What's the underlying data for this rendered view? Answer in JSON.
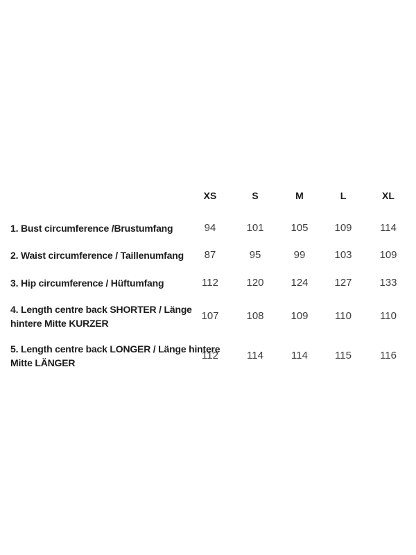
{
  "colors": {
    "background": "#ffffff",
    "text_primary": "#1c1c1c",
    "text_value": "#3c3c3c"
  },
  "chart_data": {
    "type": "table",
    "title": "",
    "grid": false,
    "size_headers": [
      "XS",
      "S",
      "M",
      "L",
      "XL"
    ],
    "measurements": [
      {
        "label": "1. Bust circumference /Brustumfang",
        "values": [
          94,
          101,
          105,
          109,
          114
        ]
      },
      {
        "label": "2. Waist circumference / Taillenumfang",
        "values": [
          87,
          95,
          99,
          103,
          109
        ]
      },
      {
        "label": "3. Hip circumference / Hüftumfang",
        "values": [
          112,
          120,
          124,
          127,
          133
        ]
      },
      {
        "label": "4. Length centre back SHORTER / Länge hintere Mitte KURZER",
        "values": [
          107,
          108,
          109,
          110,
          110
        ]
      },
      {
        "label": "5. Length centre back LONGER / Länge hintere Mitte LÄNGER",
        "values": [
          112,
          114,
          114,
          115,
          116
        ]
      }
    ]
  }
}
